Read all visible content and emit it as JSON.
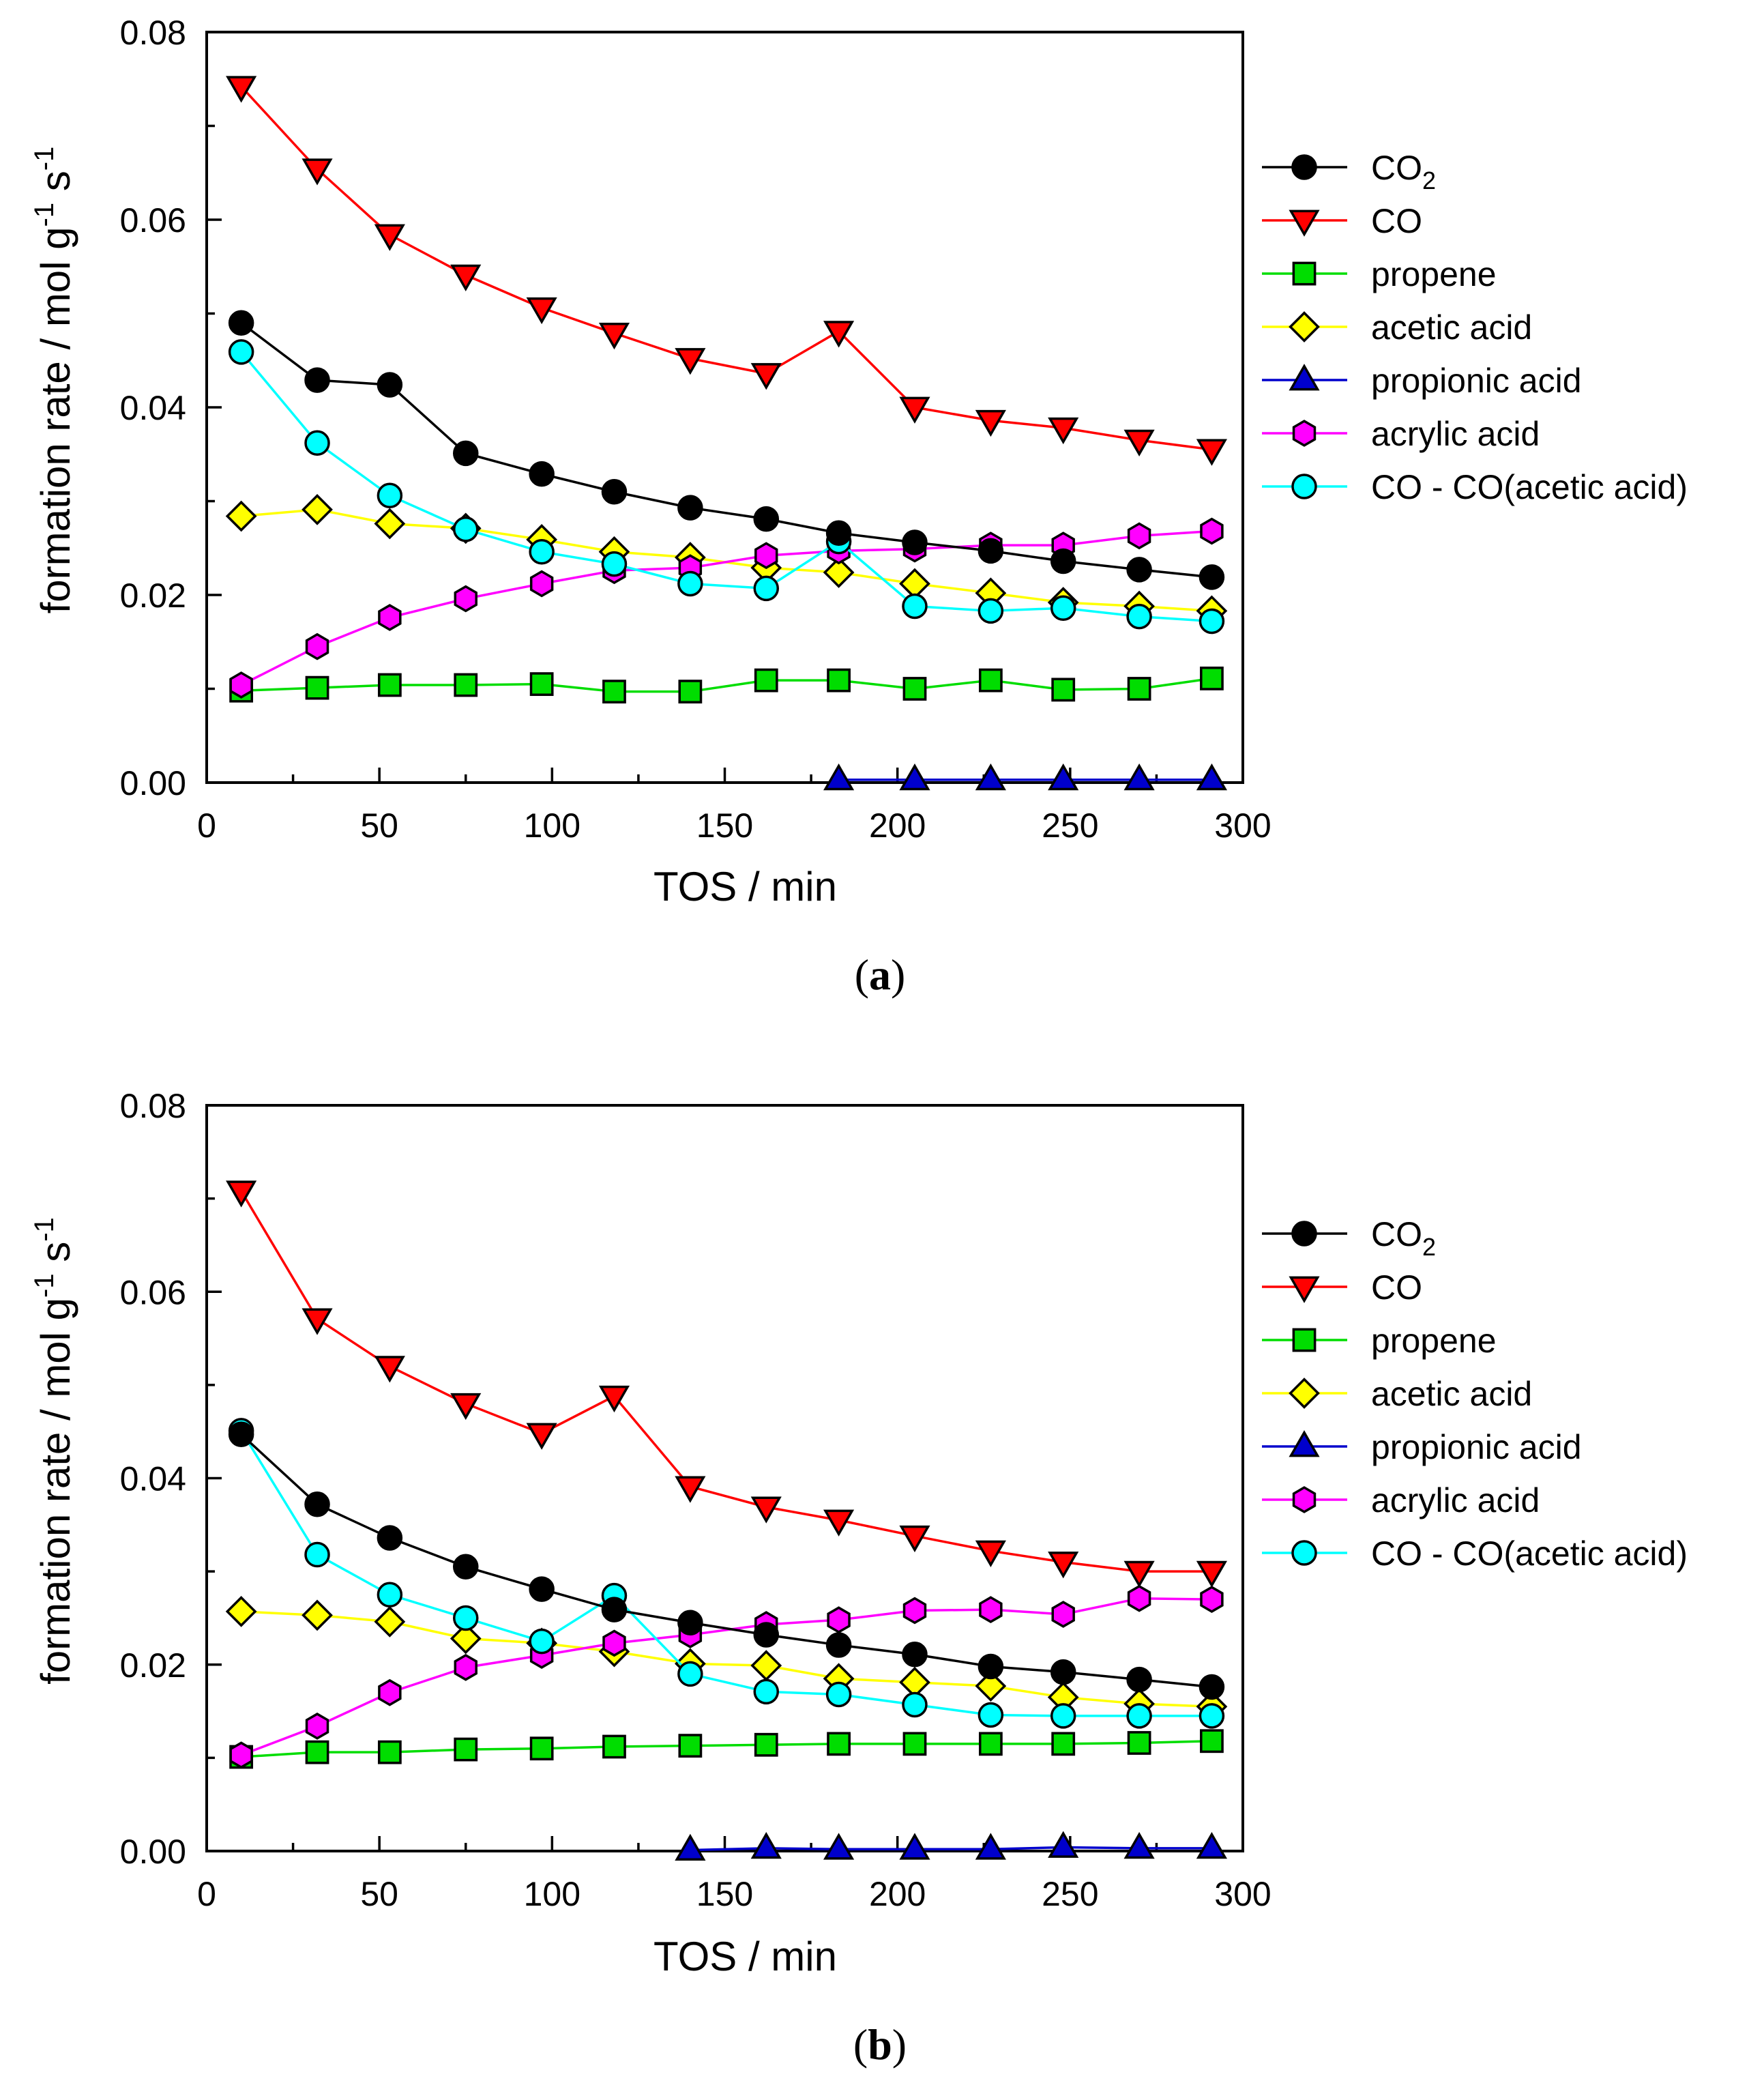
{
  "figure": {
    "colors": {
      "CO2": "#000000",
      "CO": "#ff0000",
      "propene": "#00dd00",
      "acetic acid": "#ffff00",
      "propionic acid": "#0000cc",
      "acrylic acid": "#ff00ff",
      "CO - CO(acetic acid)": "#00ffff"
    },
    "line_colors": {
      "CO2": "#000000",
      "CO": "#ff0000",
      "propene": "#00dd00",
      "acetic acid": "#ffff00",
      "propionic acid": "#0000cc",
      "acrylic acid": "#ff00ff",
      "CO - CO(acetic acid)": "#00ffff"
    }
  },
  "chart_data": [
    {
      "type": "line",
      "panel_label": "(a)",
      "xlabel": "TOS / min",
      "ylabel": "formation rate / mol g-1 s-1",
      "xlim": [
        0,
        300
      ],
      "ylim": [
        0,
        0.08
      ],
      "x_ticks": [
        "0",
        "50",
        "100",
        "150",
        "200",
        "250",
        "300"
      ],
      "y_ticks": [
        "0.00",
        "0.02",
        "0.04",
        "0.06",
        "0.08"
      ],
      "x": [
        10,
        32,
        53,
        75,
        97,
        118,
        140,
        162,
        183,
        205,
        227,
        248,
        270,
        291
      ],
      "series": [
        {
          "name": "CO2",
          "marker": "circle",
          "values": [
            0.049,
            0.0429,
            0.0424,
            0.0351,
            0.0329,
            0.031,
            0.0293,
            0.0281,
            0.0266,
            0.0256,
            0.0247,
            0.0236,
            0.0227,
            0.0219
          ]
        },
        {
          "name": "CO",
          "marker": "triangle-down",
          "values": [
            0.0742,
            0.0654,
            0.0584,
            0.0541,
            0.0506,
            0.0479,
            0.0452,
            0.0436,
            0.0481,
            0.04,
            0.0386,
            0.0378,
            0.0365,
            0.0355
          ]
        },
        {
          "name": "propene",
          "marker": "square",
          "values": [
            0.0098,
            0.0101,
            0.0104,
            0.0104,
            0.0105,
            0.0097,
            0.0097,
            0.0109,
            0.0109,
            0.01,
            0.0109,
            0.0099,
            0.01,
            0.0111
          ]
        },
        {
          "name": "acetic acid",
          "marker": "diamond",
          "values": [
            0.0284,
            0.0291,
            0.0276,
            0.0271,
            0.0259,
            0.0246,
            0.024,
            0.0229,
            0.0224,
            0.0212,
            0.0202,
            0.0192,
            0.0188,
            0.0183
          ]
        },
        {
          "name": "propionic acid",
          "marker": "triangle-up",
          "x": [
            183,
            205,
            227,
            248,
            270,
            291
          ],
          "values": [
            0.0003,
            0.0003,
            0.0003,
            0.0003,
            0.0003,
            0.0003
          ]
        },
        {
          "name": "acrylic acid",
          "marker": "hexagon",
          "values": [
            0.0104,
            0.0145,
            0.0176,
            0.0196,
            0.0212,
            0.0226,
            0.0229,
            0.0242,
            0.0247,
            0.0249,
            0.0253,
            0.0253,
            0.0263,
            0.0268
          ]
        },
        {
          "name": "CO - CO(acetic acid)",
          "marker": "circle",
          "values": [
            0.0459,
            0.0362,
            0.0306,
            0.027,
            0.0246,
            0.0233,
            0.0212,
            0.0207,
            0.0257,
            0.0188,
            0.0183,
            0.0186,
            0.0177,
            0.0172
          ]
        }
      ],
      "legend": [
        "CO2",
        "CO",
        "propene",
        "acetic acid",
        "propionic acid",
        "acrylic acid",
        "CO - CO(acetic acid)"
      ],
      "legend_position": "right"
    },
    {
      "type": "line",
      "panel_label": "(b)",
      "xlabel": "TOS / min",
      "ylabel": "formation rate / mol g-1 s-1",
      "xlim": [
        0,
        300
      ],
      "ylim": [
        0,
        0.08
      ],
      "x_ticks": [
        "0",
        "50",
        "100",
        "150",
        "200",
        "250",
        "300"
      ],
      "y_ticks": [
        "0.00",
        "0.02",
        "0.04",
        "0.06",
        "0.08"
      ],
      "x": [
        10,
        32,
        53,
        75,
        97,
        118,
        140,
        162,
        183,
        205,
        227,
        248,
        270,
        291
      ],
      "series": [
        {
          "name": "CO2",
          "marker": "circle",
          "values": [
            0.0447,
            0.0372,
            0.0336,
            0.0305,
            0.0281,
            0.0259,
            0.0245,
            0.0232,
            0.0221,
            0.0211,
            0.0198,
            0.0192,
            0.0184,
            0.0176
          ]
        },
        {
          "name": "CO",
          "marker": "triangle-down",
          "values": [
            0.0708,
            0.0571,
            0.052,
            0.048,
            0.0448,
            0.0488,
            0.0391,
            0.0369,
            0.0355,
            0.0338,
            0.0322,
            0.031,
            0.03,
            0.03
          ]
        },
        {
          "name": "propene",
          "marker": "square",
          "values": [
            0.0101,
            0.0106,
            0.0106,
            0.0109,
            0.011,
            0.0112,
            0.0113,
            0.0114,
            0.0115,
            0.0115,
            0.0115,
            0.0115,
            0.0116,
            0.0118
          ]
        },
        {
          "name": "acetic acid",
          "marker": "diamond",
          "values": [
            0.0257,
            0.0253,
            0.0246,
            0.0228,
            0.0223,
            0.0214,
            0.0201,
            0.0199,
            0.0185,
            0.0181,
            0.0177,
            0.0165,
            0.0158,
            0.0155
          ]
        },
        {
          "name": "propionic acid",
          "marker": "triangle-up",
          "x": [
            140,
            162,
            183,
            205,
            227,
            248,
            270,
            291
          ],
          "values": [
            0.0001,
            0.0003,
            0.0002,
            0.0002,
            0.0002,
            0.0004,
            0.0003,
            0.0003
          ]
        },
        {
          "name": "acrylic acid",
          "marker": "hexagon",
          "values": [
            0.0103,
            0.0134,
            0.017,
            0.0197,
            0.021,
            0.0223,
            0.0232,
            0.0243,
            0.0248,
            0.0258,
            0.0259,
            0.0254,
            0.0271,
            0.027
          ]
        },
        {
          "name": "CO - CO(acetic acid)",
          "marker": "circle",
          "values": [
            0.0451,
            0.0318,
            0.0275,
            0.025,
            0.0225,
            0.0274,
            0.019,
            0.0171,
            0.0168,
            0.0157,
            0.0146,
            0.0145,
            0.0145,
            0.0145
          ]
        }
      ],
      "legend": [
        "CO2",
        "CO",
        "propene",
        "acetic acid",
        "propionic acid",
        "acrylic acid",
        "CO - CO(acetic acid)"
      ],
      "legend_position": "right"
    }
  ]
}
